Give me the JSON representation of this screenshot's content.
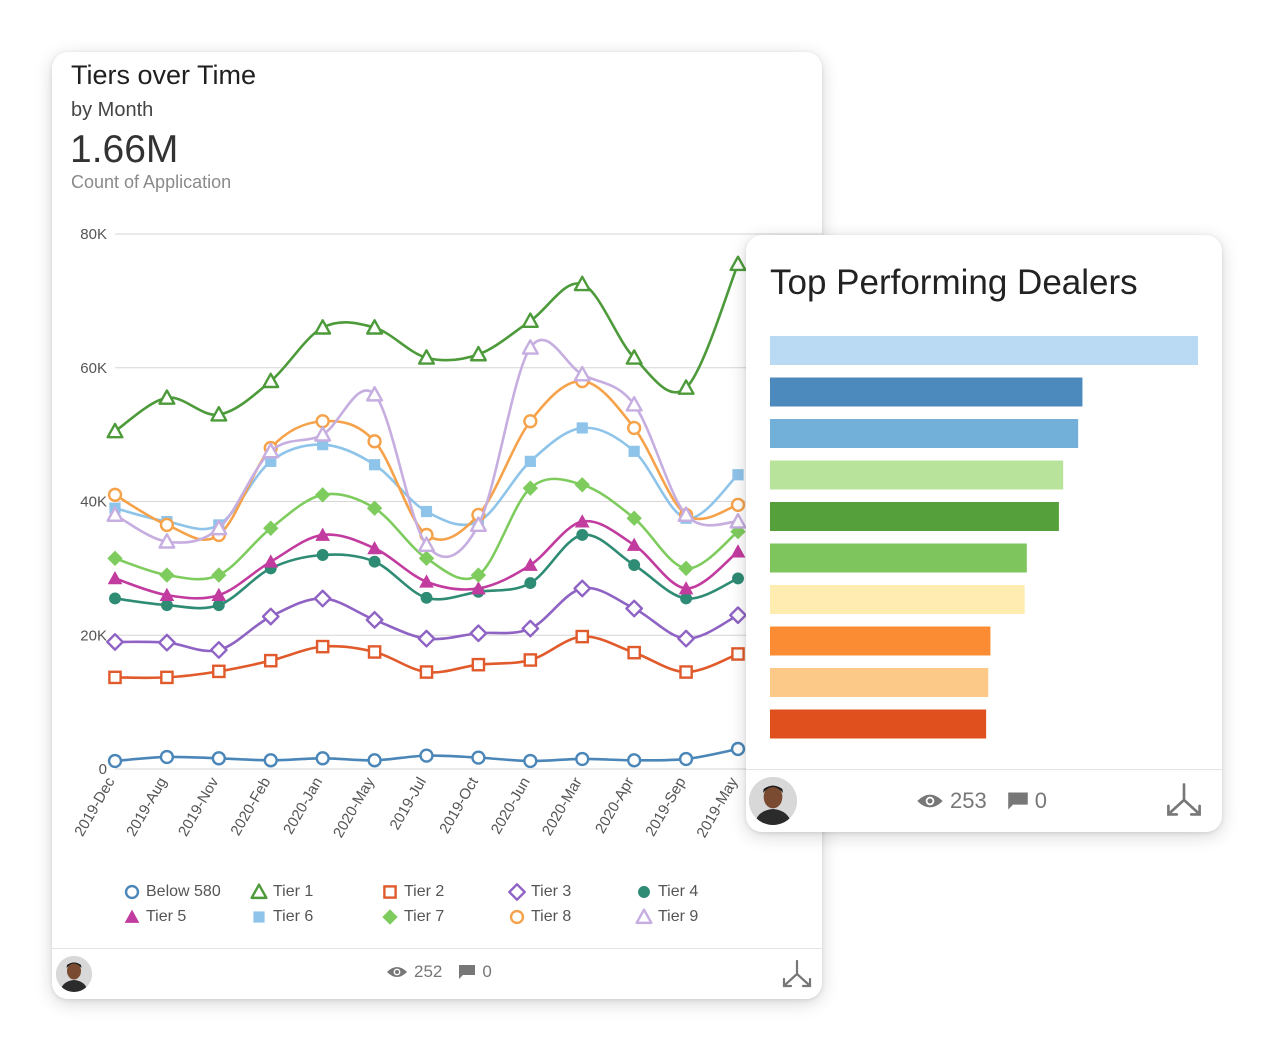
{
  "card_left": {
    "title": "Tiers over Time",
    "subtitle": "by Month",
    "metric": "1.66M",
    "metric_label": "Count of Application",
    "footer": {
      "views": "252",
      "comments": "0"
    }
  },
  "card_right": {
    "title": "Top Performing Dealers",
    "footer": {
      "views": "253",
      "comments": "0"
    }
  },
  "chart_data": [
    {
      "type": "line",
      "title": "Tiers over Time",
      "xlabel": "",
      "ylabel": "",
      "ylim": [
        0,
        80000
      ],
      "y_ticks": [
        0,
        20000,
        40000,
        60000,
        80000
      ],
      "y_tick_labels": [
        "0",
        "20K",
        "40K",
        "60K",
        "80K"
      ],
      "grid": true,
      "legend": "bottom",
      "categories": [
        "2019-Dec",
        "2019-Aug",
        "2019-Nov",
        "2020-Feb",
        "2020-Jan",
        "2020-May",
        "2019-Jul",
        "2019-Oct",
        "2020-Jun",
        "2020-Mar",
        "2020-Apr",
        "2019-Sep",
        "2019-May"
      ],
      "series": [
        {
          "name": "Below 580",
          "color": "#4a86b8",
          "marker": "circle-open",
          "values": [
            1200,
            1800,
            1600,
            1300,
            1600,
            1300,
            2000,
            1700,
            1200,
            1500,
            1300,
            1500,
            3000
          ]
        },
        {
          "name": "Tier 1",
          "color": "#4c9a3a",
          "marker": "triangle-open",
          "values": [
            50500,
            55500,
            53000,
            58000,
            66000,
            66000,
            61500,
            62000,
            67000,
            72500,
            61500,
            57000,
            75500
          ]
        },
        {
          "name": "Tier 2",
          "color": "#e05a2b",
          "marker": "square-open",
          "values": [
            13700,
            13700,
            14600,
            16200,
            18300,
            17500,
            14500,
            15600,
            16300,
            19800,
            17400,
            14500,
            17200
          ]
        },
        {
          "name": "Tier 3",
          "color": "#8e63c4",
          "marker": "diamond-open",
          "values": [
            19000,
            18900,
            17800,
            22800,
            25500,
            22300,
            19500,
            20300,
            21000,
            27000,
            24000,
            19500,
            23000
          ]
        },
        {
          "name": "Tier 4",
          "color": "#2e8b74",
          "marker": "circle",
          "values": [
            25500,
            24500,
            24500,
            30000,
            32000,
            31000,
            25600,
            26500,
            27800,
            35000,
            30500,
            25500,
            28500
          ]
        },
        {
          "name": "Tier 5",
          "color": "#c23b9f",
          "marker": "triangle",
          "values": [
            28500,
            26000,
            26000,
            31000,
            35000,
            33000,
            28000,
            27000,
            30500,
            37000,
            33500,
            27000,
            32500
          ]
        },
        {
          "name": "Tier 6",
          "color": "#8fc4ea",
          "marker": "square",
          "values": [
            39000,
            37000,
            36500,
            46000,
            48500,
            45500,
            38500,
            37000,
            46000,
            51000,
            47500,
            37500,
            44000
          ]
        },
        {
          "name": "Tier 7",
          "color": "#7fcc5e",
          "marker": "diamond",
          "values": [
            31500,
            29000,
            29000,
            36000,
            41000,
            39000,
            31500,
            29000,
            42000,
            42500,
            37500,
            30000,
            35500
          ]
        },
        {
          "name": "Tier 8",
          "color": "#f5a24a",
          "marker": "circle-open",
          "values": [
            41000,
            36500,
            35000,
            48000,
            52000,
            49000,
            35000,
            38000,
            52000,
            58000,
            51000,
            38000,
            39500
          ]
        },
        {
          "name": "Tier 9",
          "color": "#c6aee0",
          "marker": "triangle-open",
          "values": [
            38000,
            34000,
            36000,
            47500,
            50000,
            56000,
            33500,
            36500,
            63000,
            59000,
            54500,
            38000,
            37000
          ]
        }
      ]
    },
    {
      "type": "bar",
      "orientation": "horizontal",
      "title": "Top Performing Dealers",
      "categories": [
        "",
        "",
        "",
        "",
        "",
        "",
        "",
        "",
        "",
        ""
      ],
      "values": [
        100,
        73,
        72,
        68.5,
        67.5,
        60,
        59.5,
        51.5,
        51,
        50.5
      ],
      "colors": [
        "#bad9f3",
        "#4c8abd",
        "#72afd9",
        "#b8e39a",
        "#55a03b",
        "#7dc55c",
        "#feecb0",
        "#fb8c33",
        "#fcc989",
        "#e0501f"
      ],
      "xlim": [
        0,
        100
      ]
    }
  ]
}
